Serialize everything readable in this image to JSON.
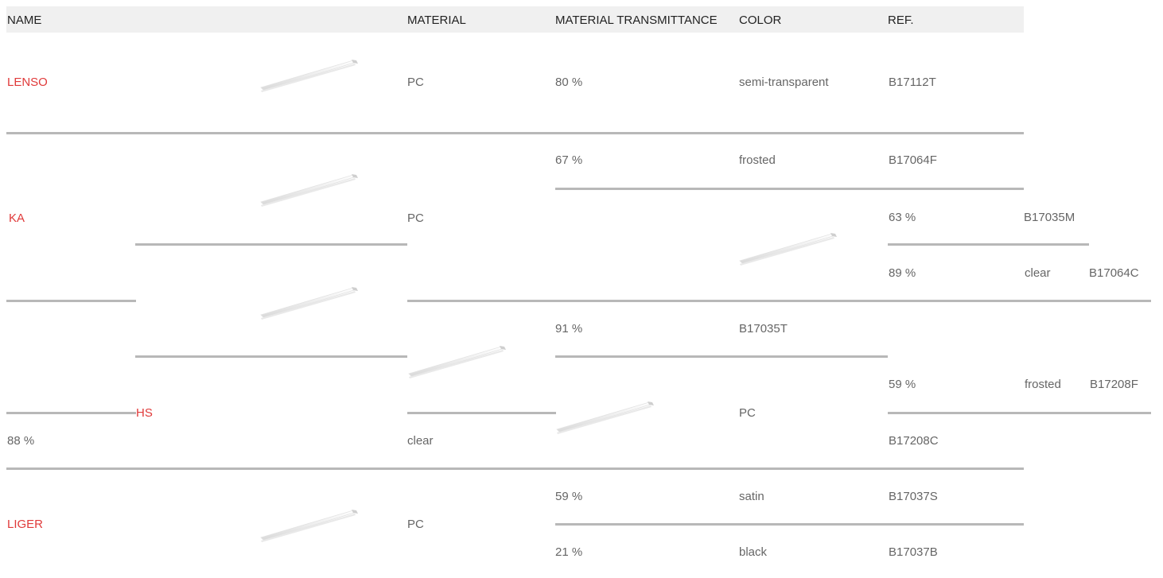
{
  "header": {
    "name": "NAME",
    "material": "MATERIAL",
    "transmittance": "MATERIAL TRANSMITTANCE",
    "color": "COLOR",
    "ref": "REF."
  },
  "colors": {
    "name_link": "#e03a3a",
    "text": "#666666",
    "header_text": "#222222",
    "header_bg": "#f0f0f0",
    "divider": "#b8b8b8"
  },
  "icons": {
    "product": "led-profile-icon"
  },
  "rows": {
    "lenso": {
      "name": "LENSO",
      "material": "PC",
      "transmittance": "80 %",
      "color": "semi-transparent",
      "ref": "B17112T"
    },
    "ka": {
      "name": "KA",
      "material": "PC",
      "v1": {
        "transmittance": "67 %",
        "color": "frosted",
        "ref": "B17064F"
      },
      "v2": {
        "transmittance": "63 %",
        "ref": "B17035M"
      },
      "v3": {
        "transmittance": "89 %",
        "color": "clear",
        "ref": "B17064C"
      },
      "v4": {
        "transmittance": "91 %",
        "ref": "B17035T"
      }
    },
    "hs": {
      "name": "HS",
      "material": "PC",
      "v1": {
        "transmittance": "59 %",
        "color": "frosted",
        "ref": "B17208F"
      },
      "v2": {
        "transmittance": "88 %",
        "color": "clear",
        "ref": "B17208C"
      }
    },
    "liger": {
      "name": "LIGER",
      "material": "PC",
      "v1": {
        "transmittance": "59 %",
        "color": "satin",
        "ref": "B17037S"
      },
      "v2": {
        "transmittance": "21 %",
        "color": "black",
        "ref": "B17037B"
      }
    }
  }
}
